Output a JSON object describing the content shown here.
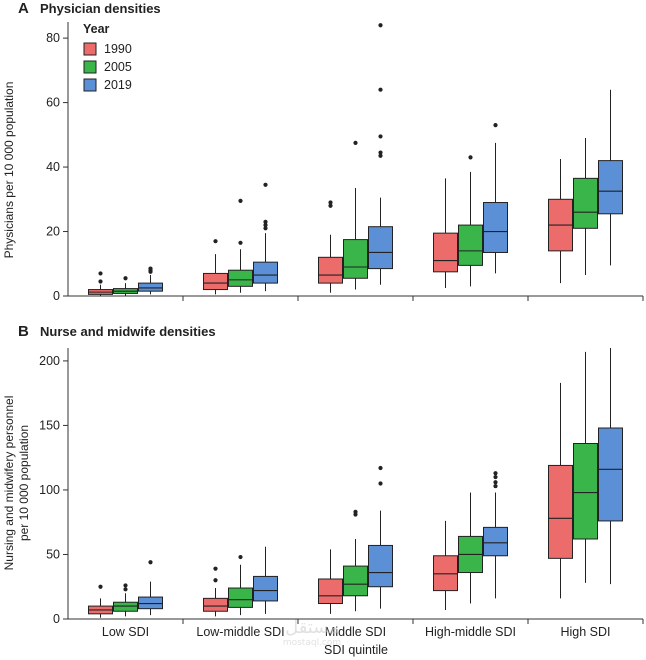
{
  "chart_data": [
    {
      "type": "box",
      "panel_letter": "A",
      "title": "Physician densities",
      "ylabel": "Physicians per 10 000 population",
      "ylim": [
        0,
        85
      ],
      "yticks": [
        0,
        20,
        40,
        60,
        80
      ],
      "categories": [
        "Low SDI",
        "Low-middle SDI",
        "Middle SDI",
        "High-middle SDI",
        "High SDI"
      ],
      "legend": {
        "title": "Year",
        "position": "top-left",
        "entries": [
          "1990",
          "2005",
          "2019"
        ]
      },
      "series": [
        {
          "name": "1990",
          "color": "#ec6b6b",
          "boxes": [
            {
              "min": 0,
              "q1": 0.5,
              "median": 1.2,
              "q3": 2.0,
              "max": 3.5,
              "outliers": [
                4.5,
                7.0
              ]
            },
            {
              "min": 0.5,
              "q1": 2.0,
              "median": 4.0,
              "q3": 7.0,
              "max": 13.0,
              "outliers": [
                17.0
              ]
            },
            {
              "min": 1.0,
              "q1": 4.0,
              "median": 6.5,
              "q3": 12.0,
              "max": 19.0,
              "outliers": [
                28.0,
                29.0
              ]
            },
            {
              "min": 2.5,
              "q1": 7.5,
              "median": 11.0,
              "q3": 19.5,
              "max": 36.5,
              "outliers": []
            },
            {
              "min": 4.0,
              "q1": 14.0,
              "median": 22.0,
              "q3": 30.0,
              "max": 42.5,
              "outliers": []
            }
          ]
        },
        {
          "name": "2005",
          "color": "#3ab54a",
          "boxes": [
            {
              "min": 0,
              "q1": 0.8,
              "median": 1.5,
              "q3": 2.3,
              "max": 4.0,
              "outliers": [
                5.5
              ]
            },
            {
              "min": 1.0,
              "q1": 3.0,
              "median": 5.0,
              "q3": 8.0,
              "max": 14.5,
              "outliers": [
                16.5,
                29.5
              ]
            },
            {
              "min": 2.0,
              "q1": 5.5,
              "median": 9.0,
              "q3": 17.5,
              "max": 33.5,
              "outliers": [
                47.5
              ]
            },
            {
              "min": 3.0,
              "q1": 9.5,
              "median": 14.0,
              "q3": 22.0,
              "max": 38.5,
              "outliers": [
                43.0
              ]
            },
            {
              "min": 6.5,
              "q1": 21.0,
              "median": 26.0,
              "q3": 36.5,
              "max": 49.0,
              "outliers": []
            }
          ]
        },
        {
          "name": "2019",
          "color": "#5b8fd6",
          "boxes": [
            {
              "min": 0.5,
              "q1": 1.5,
              "median": 2.5,
              "q3": 4.0,
              "max": 6.5,
              "outliers": [
                7.5,
                8.0,
                8.5
              ]
            },
            {
              "min": 1.5,
              "q1": 4.0,
              "median": 6.5,
              "q3": 10.5,
              "max": 19.5,
              "outliers": [
                21.0,
                22.0,
                23.0,
                34.5
              ]
            },
            {
              "min": 3.5,
              "q1": 8.5,
              "median": 13.5,
              "q3": 21.5,
              "max": 30.5,
              "outliers": [
                43.5,
                44.5,
                49.5,
                64.0,
                84.0
              ]
            },
            {
              "min": 7.0,
              "q1": 13.5,
              "median": 20.0,
              "q3": 29.0,
              "max": 47.5,
              "outliers": [
                53.0
              ]
            },
            {
              "min": 9.5,
              "q1": 25.5,
              "median": 32.5,
              "q3": 42.0,
              "max": 64.0,
              "outliers": []
            }
          ]
        }
      ]
    },
    {
      "type": "box",
      "panel_letter": "B",
      "title": "Nurse and midwife densities",
      "ylabel_lines": [
        "Nursing and midwifery personnel",
        "per 10 000 population"
      ],
      "xlabel": "SDI quintile",
      "ylim": [
        0,
        210
      ],
      "yticks": [
        0,
        50,
        100,
        150,
        200
      ],
      "categories": [
        "Low SDI",
        "Low-middle SDI",
        "Middle SDI",
        "High-middle SDI",
        "High SDI"
      ],
      "series": [
        {
          "name": "1990",
          "color": "#ec6b6b",
          "boxes": [
            {
              "min": 1,
              "q1": 4,
              "median": 7,
              "q3": 10,
              "max": 16,
              "outliers": [
                25
              ]
            },
            {
              "min": 2,
              "q1": 6,
              "median": 10,
              "q3": 16,
              "max": 24,
              "outliers": [
                30,
                39
              ]
            },
            {
              "min": 4,
              "q1": 12,
              "median": 18,
              "q3": 31,
              "max": 54,
              "outliers": []
            },
            {
              "min": 7,
              "q1": 22,
              "median": 35,
              "q3": 49,
              "max": 76,
              "outliers": []
            },
            {
              "min": 16,
              "q1": 47,
              "median": 78,
              "q3": 119,
              "max": 183,
              "outliers": []
            }
          ]
        },
        {
          "name": "2005",
          "color": "#3ab54a",
          "boxes": [
            {
              "min": 2,
              "q1": 6,
              "median": 10,
              "q3": 13,
              "max": 20,
              "outliers": [
                23,
                26
              ]
            },
            {
              "min": 3,
              "q1": 9,
              "median": 15,
              "q3": 24,
              "max": 42,
              "outliers": [
                48
              ]
            },
            {
              "min": 6,
              "q1": 18,
              "median": 27,
              "q3": 41,
              "max": 62,
              "outliers": [
                81,
                83
              ]
            },
            {
              "min": 12,
              "q1": 36,
              "median": 50,
              "q3": 64,
              "max": 98,
              "outliers": []
            },
            {
              "min": 28,
              "q1": 62,
              "median": 98,
              "q3": 136,
              "max": 207,
              "outliers": []
            }
          ]
        },
        {
          "name": "2019",
          "color": "#5b8fd6",
          "boxes": [
            {
              "min": 3,
              "q1": 8,
              "median": 12,
              "q3": 17,
              "max": 29,
              "outliers": [
                44
              ]
            },
            {
              "min": 4,
              "q1": 14,
              "median": 22,
              "q3": 33,
              "max": 56,
              "outliers": []
            },
            {
              "min": 8,
              "q1": 25,
              "median": 36,
              "q3": 57,
              "max": 84,
              "outliers": [
                105,
                117
              ]
            },
            {
              "min": 16,
              "q1": 49,
              "median": 59,
              "q3": 71,
              "max": 98,
              "outliers": [
                103,
                106,
                110,
                113
              ]
            },
            {
              "min": 27,
              "q1": 76,
              "median": 116,
              "q3": 148,
              "max": 210,
              "outliers": []
            }
          ]
        }
      ]
    }
  ]
}
